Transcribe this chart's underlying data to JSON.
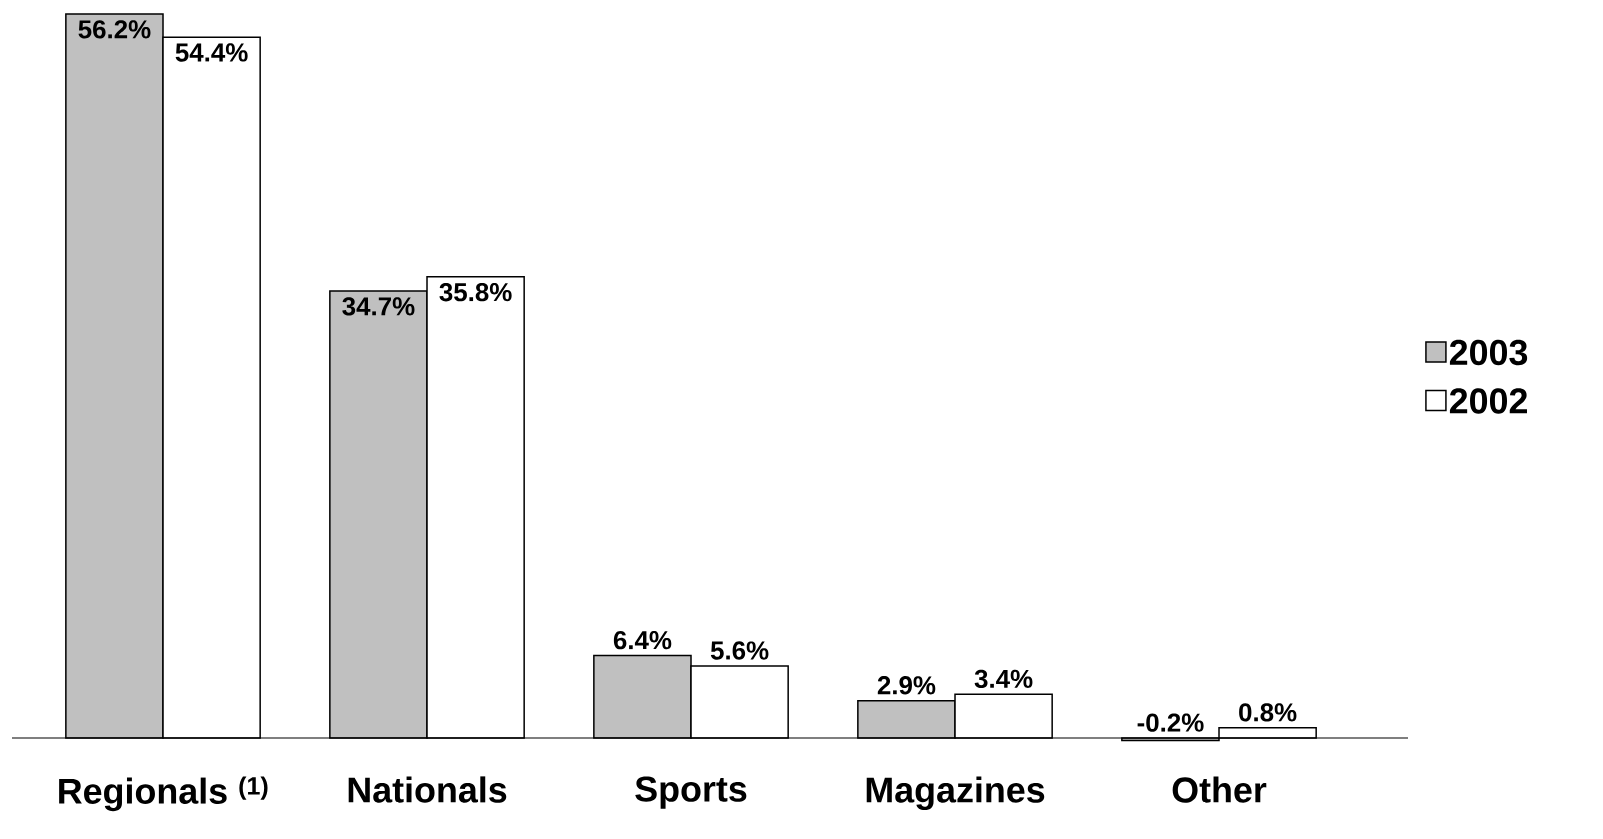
{
  "chart_data": {
    "type": "bar",
    "categories": [
      "Regionals $^{(1)}$",
      "Nationals",
      "Sports",
      "Magazines",
      "Other"
    ],
    "series": [
      {
        "name": "2003",
        "color": "#c0c0c0",
        "values": [
          56.2,
          34.7,
          6.4,
          2.9,
          -0.2
        ],
        "value_labels": [
          "56.2%",
          "34.7%",
          "6.4%",
          "2.9%",
          "-0.2%"
        ]
      },
      {
        "name": "2002",
        "color": "#ffffff",
        "values": [
          54.4,
          35.8,
          5.6,
          3.4,
          0.8
        ],
        "value_labels": [
          "54.4%",
          "35.8%",
          "5.6%",
          "3.4%",
          "0.8%"
        ]
      }
    ],
    "legend": "right"
  }
}
